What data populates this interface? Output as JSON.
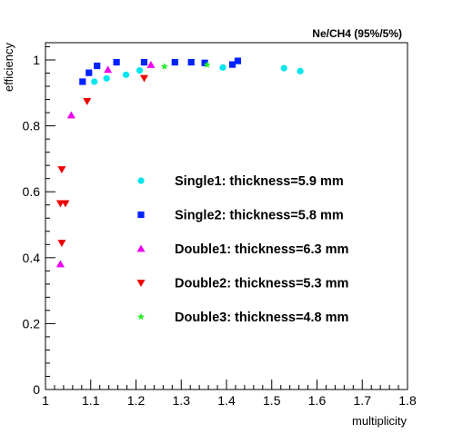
{
  "chart_data": {
    "type": "scatter",
    "title": "Ne/CH4 (95%/5%)",
    "xlabel": "multiplicity",
    "ylabel": "efficiency",
    "xlim": [
      1,
      1.8
    ],
    "ylim": [
      0,
      1.05
    ],
    "x_ticks": [
      "1",
      "1.1",
      "1.2",
      "1.3",
      "1.4",
      "1.5",
      "1.6",
      "1.7",
      "1.8"
    ],
    "y_ticks": [
      "0",
      "0.2",
      "0.4",
      "0.6",
      "0.8",
      "1"
    ],
    "grid": false,
    "legend_position": "inside-center",
    "series": [
      {
        "name": "Single1: thickness=5.9 mm",
        "marker": "circle",
        "color": "#00e5ee",
        "points": [
          [
            1.108,
            0.934
          ],
          [
            1.135,
            0.944
          ],
          [
            1.178,
            0.955
          ],
          [
            1.208,
            0.968
          ],
          [
            1.392,
            0.977
          ],
          [
            1.527,
            0.975
          ],
          [
            1.563,
            0.966
          ]
        ]
      },
      {
        "name": "Single2: thickness=5.8 mm",
        "marker": "square",
        "color": "#0022ff",
        "points": [
          [
            1.082,
            0.934
          ],
          [
            1.096,
            0.961
          ],
          [
            1.114,
            0.982
          ],
          [
            1.157,
            0.993
          ],
          [
            1.218,
            0.993
          ],
          [
            1.286,
            0.993
          ],
          [
            1.322,
            0.993
          ],
          [
            1.352,
            0.991
          ],
          [
            1.413,
            0.986
          ],
          [
            1.425,
            0.997
          ]
        ]
      },
      {
        "name": "Double1: thickness=6.3 mm",
        "marker": "triangle-up",
        "color": "#ee00ee",
        "points": [
          [
            1.033,
            0.38
          ],
          [
            1.057,
            0.832
          ],
          [
            1.138,
            0.97
          ],
          [
            1.233,
            0.985
          ]
        ]
      },
      {
        "name": "Double2: thickness=5.3 mm",
        "marker": "triangle-down",
        "color": "#ee0000",
        "points": [
          [
            1.036,
            0.445
          ],
          [
            1.033,
            0.565
          ],
          [
            1.044,
            0.565
          ],
          [
            1.036,
            0.668
          ],
          [
            1.092,
            0.875
          ],
          [
            1.218,
            0.945
          ]
        ]
      },
      {
        "name": "Double3: thickness=4.8 mm",
        "marker": "star",
        "color": "#22ee22",
        "points": [
          [
            1.263,
            0.98
          ],
          [
            1.357,
            0.985
          ]
        ]
      }
    ]
  }
}
